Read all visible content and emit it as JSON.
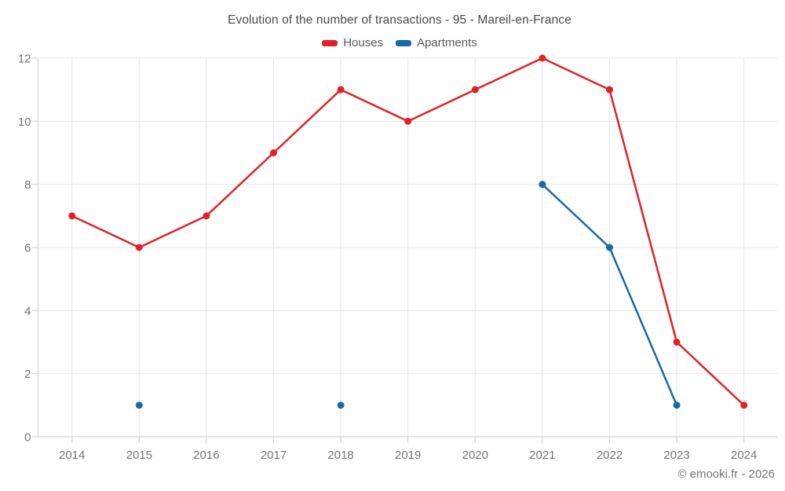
{
  "chart_data": {
    "type": "line",
    "title": "Evolution of the number of transactions - 95 - Mareil-en-France",
    "categories": [
      "2014",
      "2015",
      "2016",
      "2017",
      "2018",
      "2019",
      "2020",
      "2021",
      "2022",
      "2023",
      "2024"
    ],
    "xlabel": "",
    "ylabel": "",
    "ylim": [
      0,
      12
    ],
    "yticks": [
      0,
      2,
      4,
      6,
      8,
      10,
      12
    ],
    "grid": true,
    "legend_position": "top",
    "series": [
      {
        "name": "Houses",
        "color": "#e02228",
        "values": [
          7,
          6,
          7,
          9,
          11,
          10,
          11,
          12,
          11,
          3,
          1
        ]
      },
      {
        "name": "Apartments",
        "color": "#176aa5",
        "values": [
          null,
          1,
          null,
          null,
          1,
          null,
          null,
          8,
          6,
          1,
          null
        ]
      }
    ],
    "colors": {
      "gridline": "#e9e9e9",
      "axis": "#d7d7d7",
      "tick_label": "#757575",
      "title_text": "#4a4a4a"
    }
  },
  "footer": {
    "copyright": "© emooki.fr - 2026"
  }
}
